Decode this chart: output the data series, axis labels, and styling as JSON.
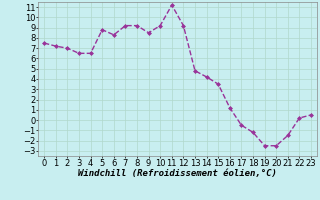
{
  "hours": [
    0,
    1,
    2,
    3,
    4,
    5,
    6,
    7,
    8,
    9,
    10,
    11,
    12,
    13,
    14,
    15,
    16,
    17,
    18,
    19,
    20,
    21,
    22,
    23
  ],
  "values": [
    7.5,
    7.2,
    7.0,
    6.5,
    6.5,
    8.8,
    8.3,
    9.2,
    9.2,
    8.5,
    9.2,
    11.2,
    9.2,
    4.8,
    4.2,
    3.5,
    1.2,
    -0.5,
    -1.2,
    -2.5,
    -2.5,
    -1.5,
    0.2,
    0.5
  ],
  "line_color": "#993399",
  "marker": "D",
  "marker_size": 2.0,
  "bg_color": "#c8eef0",
  "grid_color": "#b0d8cc",
  "xlabel": "Windchill (Refroidissement éolien,°C)",
  "xlim": [
    -0.5,
    23.5
  ],
  "ylim": [
    -3.5,
    11.5
  ],
  "yticks": [
    -3,
    -2,
    -1,
    0,
    1,
    2,
    3,
    4,
    5,
    6,
    7,
    8,
    9,
    10,
    11
  ],
  "xticks": [
    0,
    1,
    2,
    3,
    4,
    5,
    6,
    7,
    8,
    9,
    10,
    11,
    12,
    13,
    14,
    15,
    16,
    17,
    18,
    19,
    20,
    21,
    22,
    23
  ],
  "xlabel_fontsize": 6.5,
  "tick_fontsize": 6.0,
  "line_width": 1.0
}
